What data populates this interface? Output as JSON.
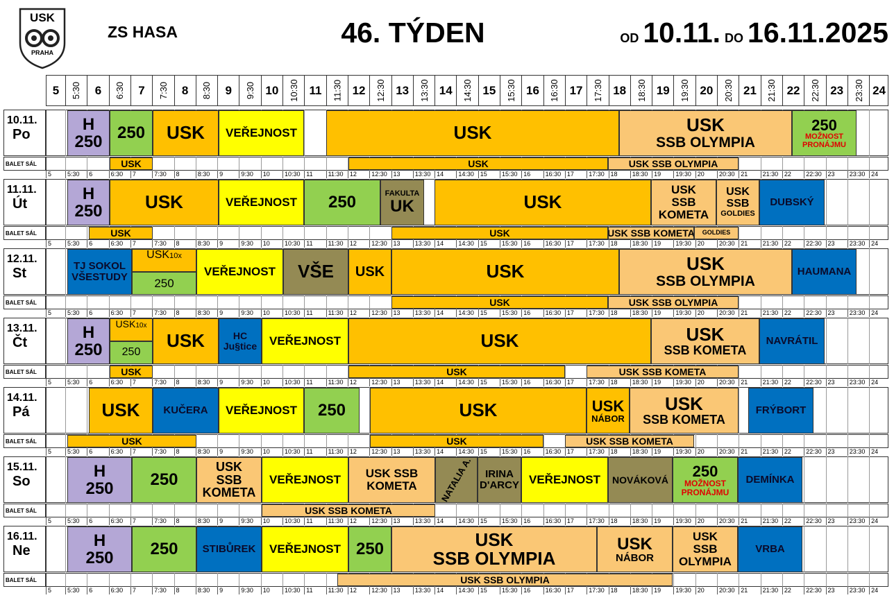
{
  "logo": {
    "top": "USK",
    "bottom": "PRAHA"
  },
  "header": {
    "title": "ZS HASA",
    "week": "46. TÝDEN",
    "from_label": "OD",
    "from": "10.11.",
    "to_label": "DO",
    "to": "16.11.2025"
  },
  "time_slots": [
    "5",
    "5:30",
    "6",
    "6:30",
    "7",
    "7:30",
    "8",
    "8:30",
    "9",
    "9:30",
    "10",
    "10:30",
    "11",
    "11:30",
    "12",
    "12:30",
    "13",
    "13:30",
    "14",
    "14:30",
    "15",
    "15:30",
    "16",
    "16:30",
    "17",
    "17:30",
    "18",
    "18:30",
    "19",
    "19:30",
    "20",
    "20:30",
    "21",
    "21:30",
    "22",
    "22:30",
    "23",
    "23:30",
    "24"
  ],
  "days": [
    {
      "date": "10.11.",
      "day": "Po",
      "room": "BALET SÁL",
      "main": [
        {
          "lines": [
            "H",
            "250"
          ]
        },
        {
          "lines": [
            "250"
          ]
        },
        {
          "lines": [
            "USK"
          ]
        },
        {
          "lines": [
            "VEŘEJNOST"
          ]
        },
        {
          "lines": [
            "USK"
          ]
        },
        {
          "lines": [
            "USK",
            "SSB OLYMPIA"
          ]
        },
        {
          "lines": [
            "250",
            "MOŽNOST",
            "PRONÁJMU"
          ]
        }
      ],
      "balet": [
        {
          "lines": [
            "USK"
          ]
        },
        {
          "lines": [
            "USK"
          ]
        },
        {
          "lines": [
            "USK SSB OLYMPIA"
          ]
        }
      ]
    },
    {
      "date": "11.11.",
      "day": "Út",
      "room": "BALET SÁL",
      "main": [
        {
          "lines": [
            "H",
            "250"
          ]
        },
        {
          "lines": [
            "USK"
          ]
        },
        {
          "lines": [
            "VEŘEJNOST"
          ]
        },
        {
          "lines": [
            "250"
          ]
        },
        {
          "lines": [
            "FAKULTA",
            "UK"
          ]
        },
        {
          "lines": [
            "USK"
          ]
        },
        {
          "lines": [
            "USK",
            "SSB",
            "KOMETA"
          ]
        },
        {
          "lines": [
            "USK",
            "SSB",
            "GOLDIES"
          ]
        },
        {
          "lines": [
            "DUBSKÝ"
          ]
        }
      ],
      "balet": [
        {
          "lines": [
            "USK"
          ]
        },
        {
          "lines": [
            "USK"
          ]
        },
        {
          "lines": [
            "USK SSB KOMETA"
          ]
        },
        {
          "lines": [
            "GOLDIES"
          ]
        }
      ]
    },
    {
      "date": "12.11.",
      "day": "St",
      "room": "BALET SÁL",
      "main": [
        {
          "lines": [
            "TJ SOKOL",
            "VŠESTUDY"
          ]
        },
        {
          "lines": [
            "USK",
            "10x",
            "250"
          ]
        },
        {
          "lines": [
            "VEŘEJNOST"
          ]
        },
        {
          "lines": [
            "VŠE"
          ]
        },
        {
          "lines": [
            "USK"
          ]
        },
        {
          "lines": [
            "USK"
          ]
        },
        {
          "lines": [
            "USK",
            "SSB OLYMPIA"
          ]
        },
        {
          "lines": [
            "HAUMANA"
          ]
        }
      ],
      "balet": [
        {
          "lines": [
            "USK"
          ]
        },
        {
          "lines": [
            "USK SSB OLYMPIA"
          ]
        }
      ]
    },
    {
      "date": "13.11.",
      "day": "Čt",
      "room": "BALET SÁL",
      "main": [
        {
          "lines": [
            "H",
            "250"
          ]
        },
        {
          "lines": [
            "USK",
            "10x",
            "250"
          ]
        },
        {
          "lines": [
            "USK"
          ]
        },
        {
          "lines": [
            "HC",
            "Ju§tice"
          ]
        },
        {
          "lines": [
            "VEŘEJNOST"
          ]
        },
        {
          "lines": [
            "USK"
          ]
        },
        {
          "lines": [
            "USK",
            "SSB KOMETA"
          ]
        },
        {
          "lines": [
            "NAVRÁTIL"
          ]
        }
      ],
      "balet": [
        {
          "lines": [
            "USK"
          ]
        },
        {
          "lines": [
            "USK"
          ]
        },
        {
          "lines": [
            "USK SSB KOMETA"
          ]
        }
      ]
    },
    {
      "date": "14.11.",
      "day": "Pá",
      "room": "BALET SÁL",
      "main": [
        {
          "lines": [
            "USK"
          ]
        },
        {
          "lines": [
            "KUČERA"
          ]
        },
        {
          "lines": [
            "VEŘEJNOST"
          ]
        },
        {
          "lines": [
            "250"
          ]
        },
        {
          "lines": [
            "USK"
          ]
        },
        {
          "lines": [
            "USK",
            "NÁBOR"
          ]
        },
        {
          "lines": [
            "USK",
            "SSB KOMETA"
          ]
        },
        {
          "lines": [
            "FRÝBORT"
          ]
        }
      ],
      "balet": [
        {
          "lines": [
            "USK"
          ]
        },
        {
          "lines": [
            "USK"
          ]
        },
        {
          "lines": [
            "USK SSB KOMETA"
          ]
        }
      ]
    },
    {
      "date": "15.11.",
      "day": "So",
      "room": "BALET SÁL",
      "main": [
        {
          "lines": [
            "H",
            "250"
          ]
        },
        {
          "lines": [
            "250"
          ]
        },
        {
          "lines": [
            "USK",
            "SSB",
            "KOMETA"
          ]
        },
        {
          "lines": [
            "VEŘEJNOST"
          ]
        },
        {
          "lines": [
            "USK SSB",
            "KOMETA"
          ]
        },
        {
          "lines": [
            "NATALIA A."
          ]
        },
        {
          "lines": [
            "IRINA",
            "D'ARCY"
          ]
        },
        {
          "lines": [
            "VEŘEJNOST"
          ]
        },
        {
          "lines": [
            "NOVÁKOVÁ"
          ]
        },
        {
          "lines": [
            "250",
            "MOŽNOST",
            "PRONÁJMU"
          ]
        },
        {
          "lines": [
            "DEMÍNKA"
          ]
        }
      ],
      "balet": [
        {
          "lines": [
            "USK SSB KOMETA"
          ]
        }
      ]
    },
    {
      "date": "16.11.",
      "day": "Ne",
      "room": "BALET SÁL",
      "main": [
        {
          "lines": [
            "H",
            "250"
          ]
        },
        {
          "lines": [
            "250"
          ]
        },
        {
          "lines": [
            "STIBŮREK"
          ]
        },
        {
          "lines": [
            "VEŘEJNOST"
          ]
        },
        {
          "lines": [
            "250"
          ]
        },
        {
          "lines": [
            "USK",
            "SSB OLYMPIA"
          ]
        },
        {
          "lines": [
            "USK",
            "NÁBOR"
          ]
        },
        {
          "lines": [
            "USK",
            "SSB",
            "OLYMPIA"
          ]
        },
        {
          "lines": [
            "VRBA"
          ]
        }
      ],
      "balet": [
        {
          "lines": [
            "USK SSB OLYMPIA"
          ]
        }
      ]
    }
  ]
}
